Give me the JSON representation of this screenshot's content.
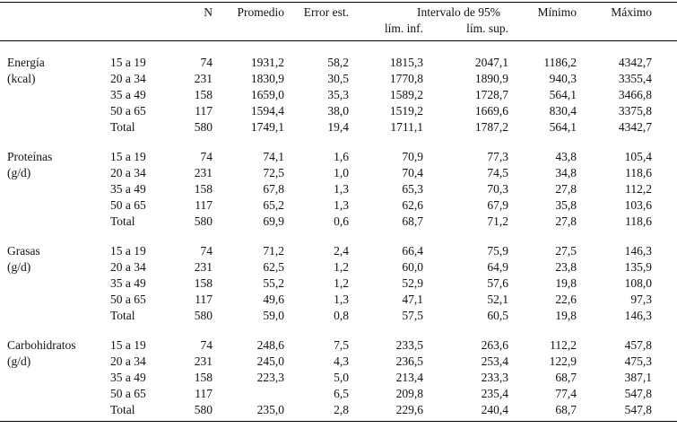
{
  "header": {
    "columns": [
      "N",
      "Promedio",
      "Error est.",
      "Intervalo de 95%",
      "Mínimo",
      "Máximo"
    ],
    "subcolumns": [
      "lím. inf.",
      "lím. sup."
    ]
  },
  "groups": [
    {
      "label": [
        "Energía",
        "(kcal)"
      ],
      "rows": [
        [
          "15 a 19",
          "74",
          "1931,2",
          "58,2",
          "1815,3",
          "2047,1",
          "1186,2",
          "4342,7"
        ],
        [
          "20 a 34",
          "231",
          "1830,9",
          "30,5",
          "1770,8",
          "1890,9",
          "940,3",
          "3355,4"
        ],
        [
          "35 a 49",
          "158",
          "1659,0",
          "35,3",
          "1589,2",
          "1728,7",
          "564,1",
          "3466,8"
        ],
        [
          "50 a 65",
          "117",
          "1594,4",
          "38,0",
          "1519,2",
          "1669,6",
          "830,4",
          "3375,8"
        ],
        [
          "Total",
          "580",
          "1749,1",
          "19,4",
          "1711,1",
          "1787,2",
          "564,1",
          "4342,7"
        ]
      ]
    },
    {
      "label": [
        "Proteínas",
        "(g/d)"
      ],
      "rows": [
        [
          "15 a 19",
          "74",
          "74,1",
          "1,6",
          "70,9",
          "77,3",
          "43,8",
          "105,4"
        ],
        [
          "20 a 34",
          "231",
          "72,5",
          "1,0",
          "70,4",
          "74,5",
          "34,8",
          "118,6"
        ],
        [
          "35 a 49",
          "158",
          "67,8",
          "1,3",
          "65,3",
          "70,3",
          "27,8",
          "112,2"
        ],
        [
          "50 a 65",
          "117",
          "65,2",
          "1,3",
          "62,6",
          "67,9",
          "35,8",
          "103,6"
        ],
        [
          "Total",
          "580",
          "69,9",
          "0,6",
          "68,7",
          "71,2",
          "27,8",
          "118,6"
        ]
      ]
    },
    {
      "label": [
        "Grasas",
        "(g/d)"
      ],
      "rows": [
        [
          "15 a 19",
          "74",
          "71,2",
          "2,4",
          "66,4",
          "75,9",
          "27,5",
          "146,3"
        ],
        [
          "20 a 34",
          "231",
          "62,5",
          "1,2",
          "60,0",
          "64,9",
          "23,8",
          "135,9"
        ],
        [
          "35 a 49",
          "158",
          "55,2",
          "1,2",
          "52,9",
          "57,6",
          "19,8",
          "108,0"
        ],
        [
          "50 a 65",
          "117",
          "49,6",
          "1,3",
          "47,1",
          "52,1",
          "22,6",
          "97,3"
        ],
        [
          "Total",
          "580",
          "59,0",
          "0,8",
          "57,5",
          "60,5",
          "19,8",
          "146,3"
        ]
      ]
    },
    {
      "label": [
        "Carbohidratos",
        "(g/d)"
      ],
      "rows": [
        [
          "15 a 19",
          "74",
          "248,6",
          "7,5",
          "233,5",
          "263,6",
          "112,2",
          "457,8"
        ],
        [
          "20 a 34",
          "231",
          "245,0",
          "4,3",
          "236,5",
          "253,4",
          "122,9",
          "475,3"
        ],
        [
          "35 a 49",
          "158",
          "223,3",
          "5,0",
          "213,4",
          "233,3",
          "68,7",
          "387,1"
        ],
        [
          "50 a 65",
          "117",
          null,
          "6,5",
          "209,8",
          "235,4",
          "77,4",
          "547,8"
        ],
        [
          "Total",
          "580",
          "235,0",
          "2,8",
          "229,6",
          "240,4",
          "68,7",
          "547,8"
        ]
      ]
    }
  ]
}
